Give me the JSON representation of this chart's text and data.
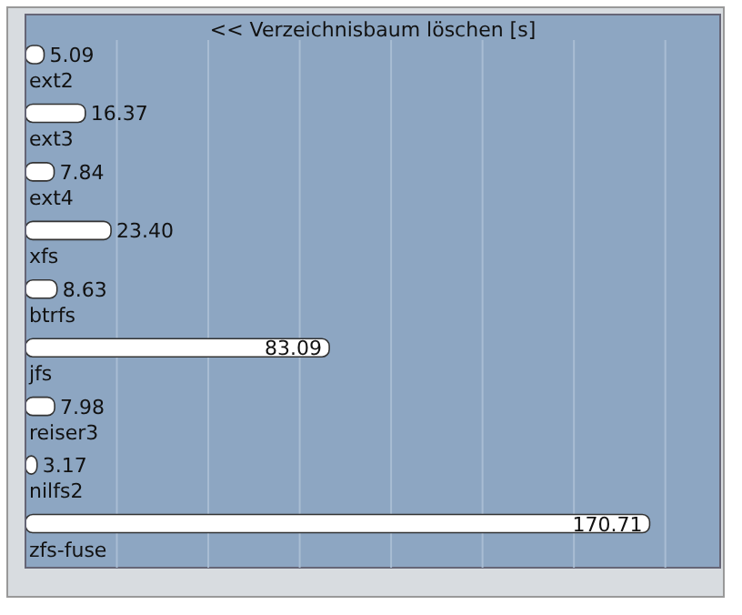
{
  "chart_data": {
    "type": "bar",
    "orientation": "horizontal",
    "title": "<< Verzeichnisbaum löschen [s]",
    "categories": [
      "ext2",
      "ext3",
      "ext4",
      "xfs",
      "btrfs",
      "jfs",
      "reiser3",
      "nilfs2",
      "zfs-fuse"
    ],
    "values": [
      5.09,
      16.37,
      7.84,
      23.4,
      8.63,
      83.09,
      7.98,
      3.17,
      170.71
    ],
    "value_labels": [
      "5.09",
      "16.37",
      "7.84",
      "23.40",
      "8.63",
      "83.09",
      "7.98",
      "3.17",
      "170.71"
    ],
    "color": "#ffffff",
    "xlim": [
      0,
      190
    ],
    "xticks": [
      {
        "value": 25,
        "label": null
      },
      {
        "value": 50,
        "label": null
      },
      {
        "value": 75,
        "label": null
      },
      {
        "value": 100,
        "label": null
      },
      {
        "value": 125,
        "label": null
      },
      {
        "value": 150,
        "label": null
      },
      {
        "value": 175,
        "label": null
      }
    ],
    "grid": "x"
  }
}
